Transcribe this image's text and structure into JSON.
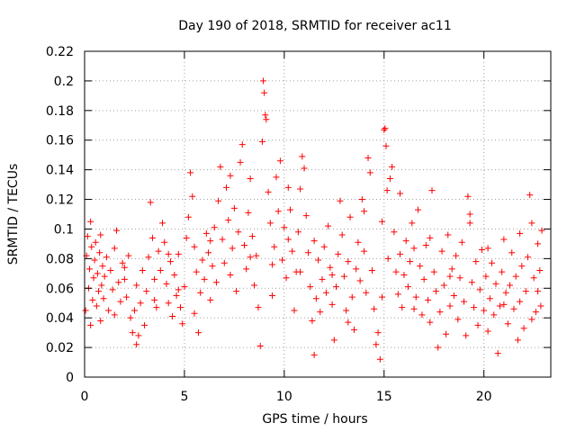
{
  "chart_data": {
    "type": "scatter",
    "title": "Day 190 of 2018, SRMTID for receiver ac11",
    "xlabel": "GPS time / hours",
    "ylabel": "SRMTID / TECUs",
    "xlim": [
      0,
      23.35
    ],
    "ylim": [
      0,
      0.22
    ],
    "xticks": [
      0,
      5,
      10,
      15,
      20
    ],
    "yticks": [
      0,
      0.02,
      0.04,
      0.06,
      0.08,
      0.1,
      0.12,
      0.14,
      0.16,
      0.18,
      0.2,
      0.22
    ],
    "xtick_labels": [
      "0",
      "5",
      "10",
      "15",
      "20"
    ],
    "ytick_labels": [
      "0",
      "0.02",
      "0.04",
      "0.06",
      "0.08",
      "0.1",
      "0.12",
      "0.14",
      "0.16",
      "0.18",
      "0.2",
      "0.22"
    ],
    "grid": true,
    "marker": "+",
    "color": "#ff0000",
    "series": [
      {
        "name": "SRMTID",
        "points": [
          [
            0.05,
            0.045
          ],
          [
            0.1,
            0.082
          ],
          [
            0.15,
            0.095
          ],
          [
            0.2,
            0.06
          ],
          [
            0.25,
            0.073
          ],
          [
            0.3,
            0.105
          ],
          [
            0.35,
            0.088
          ],
          [
            0.4,
            0.052
          ],
          [
            0.45,
            0.067
          ],
          [
            0.5,
            0.079
          ],
          [
            0.55,
            0.091
          ],
          [
            0.6,
            0.048
          ],
          [
            0.65,
            0.07
          ],
          [
            0.7,
            0.058
          ],
          [
            0.75,
            0.084
          ],
          [
            0.8,
            0.096
          ],
          [
            0.85,
            0.062
          ],
          [
            0.9,
            0.075
          ],
          [
            0.95,
            0.053
          ],
          [
            1.0,
            0.068
          ],
          [
            1.1,
            0.081
          ],
          [
            1.2,
            0.045
          ],
          [
            1.3,
            0.072
          ],
          [
            1.4,
            0.059
          ],
          [
            1.5,
            0.087
          ],
          [
            1.6,
            0.099
          ],
          [
            1.7,
            0.064
          ],
          [
            1.8,
            0.051
          ],
          [
            1.9,
            0.077
          ],
          [
            2.0,
            0.066
          ],
          [
            2.1,
            0.054
          ],
          [
            2.2,
            0.082
          ],
          [
            2.3,
            0.04
          ],
          [
            2.4,
            0.03
          ],
          [
            2.5,
            0.045
          ],
          [
            2.6,
            0.062
          ],
          [
            2.7,
            0.028
          ],
          [
            2.8,
            0.05
          ],
          [
            2.9,
            0.072
          ],
          [
            3.0,
            0.035
          ],
          [
            3.1,
            0.058
          ],
          [
            3.2,
            0.081
          ],
          [
            3.3,
            0.118
          ],
          [
            3.4,
            0.094
          ],
          [
            3.5,
            0.066
          ],
          [
            3.6,
            0.047
          ],
          [
            3.7,
            0.085
          ],
          [
            3.8,
            0.072
          ],
          [
            3.9,
            0.104
          ],
          [
            4.0,
            0.091
          ],
          [
            4.1,
            0.063
          ],
          [
            4.2,
            0.05
          ],
          [
            4.3,
            0.078
          ],
          [
            4.4,
            0.041
          ],
          [
            4.5,
            0.069
          ],
          [
            4.6,
            0.055
          ],
          [
            4.7,
            0.083
          ],
          [
            4.8,
            0.047
          ],
          [
            4.9,
            0.036
          ],
          [
            5.0,
            0.061
          ],
          [
            5.1,
            0.094
          ],
          [
            5.2,
            0.108
          ],
          [
            5.3,
            0.138
          ],
          [
            5.4,
            0.122
          ],
          [
            5.5,
            0.088
          ],
          [
            5.6,
            0.071
          ],
          [
            5.7,
            0.03
          ],
          [
            5.8,
            0.057
          ],
          [
            5.9,
            0.079
          ],
          [
            6.0,
            0.066
          ],
          [
            6.1,
            0.097
          ],
          [
            6.2,
            0.084
          ],
          [
            6.3,
            0.052
          ],
          [
            6.4,
            0.075
          ],
          [
            6.5,
            0.101
          ],
          [
            6.6,
            0.064
          ],
          [
            6.7,
            0.119
          ],
          [
            6.8,
            0.142
          ],
          [
            6.9,
            0.093
          ],
          [
            7.0,
            0.077
          ],
          [
            7.1,
            0.128
          ],
          [
            7.2,
            0.106
          ],
          [
            7.3,
            0.069
          ],
          [
            7.4,
            0.087
          ],
          [
            7.5,
            0.114
          ],
          [
            7.6,
            0.058
          ],
          [
            7.7,
            0.098
          ],
          [
            7.8,
            0.145
          ],
          [
            7.9,
            0.157
          ],
          [
            8.0,
            0.089
          ],
          [
            8.1,
            0.073
          ],
          [
            8.2,
            0.111
          ],
          [
            8.3,
            0.134
          ],
          [
            8.4,
            0.095
          ],
          [
            8.5,
            0.062
          ],
          [
            8.6,
            0.082
          ],
          [
            8.7,
            0.047
          ],
          [
            8.8,
            0.021
          ],
          [
            8.9,
            0.159
          ],
          [
            8.95,
            0.2
          ],
          [
            9.0,
            0.192
          ],
          [
            9.05,
            0.177
          ],
          [
            9.1,
            0.174
          ],
          [
            9.2,
            0.125
          ],
          [
            9.3,
            0.104
          ],
          [
            9.4,
            0.076
          ],
          [
            9.5,
            0.088
          ],
          [
            9.6,
            0.135
          ],
          [
            9.7,
            0.112
          ],
          [
            9.8,
            0.146
          ],
          [
            9.9,
            0.079
          ],
          [
            10.0,
            0.101
          ],
          [
            10.1,
            0.067
          ],
          [
            10.2,
            0.093
          ],
          [
            10.3,
            0.113
          ],
          [
            10.4,
            0.085
          ],
          [
            10.5,
            0.045
          ],
          [
            10.6,
            0.071
          ],
          [
            10.7,
            0.098
          ],
          [
            10.8,
            0.127
          ],
          [
            10.9,
            0.149
          ],
          [
            11.0,
            0.141
          ],
          [
            11.1,
            0.109
          ],
          [
            11.2,
            0.084
          ],
          [
            11.3,
            0.061
          ],
          [
            11.4,
            0.038
          ],
          [
            11.5,
            0.015
          ],
          [
            11.6,
            0.053
          ],
          [
            11.7,
            0.079
          ],
          [
            11.8,
            0.044
          ],
          [
            11.9,
            0.066
          ],
          [
            12.0,
            0.088
          ],
          [
            12.1,
            0.057
          ],
          [
            12.2,
            0.102
          ],
          [
            12.3,
            0.074
          ],
          [
            12.4,
            0.049
          ],
          [
            12.5,
            0.025
          ],
          [
            12.6,
            0.061
          ],
          [
            12.7,
            0.083
          ],
          [
            12.8,
            0.119
          ],
          [
            12.9,
            0.096
          ],
          [
            13.0,
            0.068
          ],
          [
            13.1,
            0.045
          ],
          [
            13.2,
            0.078
          ],
          [
            13.3,
            0.108
          ],
          [
            13.4,
            0.054
          ],
          [
            13.5,
            0.032
          ],
          [
            13.6,
            0.073
          ],
          [
            13.7,
            0.091
          ],
          [
            13.8,
            0.065
          ],
          [
            13.9,
            0.12
          ],
          [
            14.0,
            0.085
          ],
          [
            14.1,
            0.057
          ],
          [
            14.2,
            0.148
          ],
          [
            14.3,
            0.138
          ],
          [
            14.4,
            0.072
          ],
          [
            14.5,
            0.046
          ],
          [
            14.6,
            0.022
          ],
          [
            14.7,
            0.03
          ],
          [
            14.8,
            0.012
          ],
          [
            14.9,
            0.105
          ],
          [
            15.0,
            0.167
          ],
          [
            15.05,
            0.168
          ],
          [
            15.1,
            0.156
          ],
          [
            15.15,
            0.126
          ],
          [
            15.2,
            0.08
          ],
          [
            15.3,
            0.134
          ],
          [
            15.4,
            0.142
          ],
          [
            15.5,
            0.098
          ],
          [
            15.6,
            0.071
          ],
          [
            15.7,
            0.056
          ],
          [
            15.8,
            0.083
          ],
          [
            15.9,
            0.047
          ],
          [
            16.0,
            0.069
          ],
          [
            16.1,
            0.092
          ],
          [
            16.2,
            0.061
          ],
          [
            16.3,
            0.078
          ],
          [
            16.4,
            0.104
          ],
          [
            16.5,
            0.087
          ],
          [
            16.6,
            0.054
          ],
          [
            16.7,
            0.113
          ],
          [
            16.8,
            0.075
          ],
          [
            16.9,
            0.042
          ],
          [
            17.0,
            0.066
          ],
          [
            17.1,
            0.089
          ],
          [
            17.2,
            0.052
          ],
          [
            17.3,
            0.037
          ],
          [
            17.4,
            0.126
          ],
          [
            17.5,
            0.071
          ],
          [
            17.6,
            0.058
          ],
          [
            17.7,
            0.02
          ],
          [
            17.8,
            0.044
          ],
          [
            17.9,
            0.085
          ],
          [
            18.0,
            0.062
          ],
          [
            18.1,
            0.029
          ],
          [
            18.2,
            0.096
          ],
          [
            18.3,
            0.048
          ],
          [
            18.4,
            0.073
          ],
          [
            18.5,
            0.055
          ],
          [
            18.6,
            0.082
          ],
          [
            18.7,
            0.039
          ],
          [
            18.8,
            0.067
          ],
          [
            18.9,
            0.091
          ],
          [
            19.0,
            0.051
          ],
          [
            19.1,
            0.028
          ],
          [
            19.2,
            0.122
          ],
          [
            19.3,
            0.11
          ],
          [
            19.4,
            0.064
          ],
          [
            19.5,
            0.047
          ],
          [
            19.6,
            0.078
          ],
          [
            19.7,
            0.035
          ],
          [
            19.8,
            0.059
          ],
          [
            19.9,
            0.086
          ],
          [
            20.0,
            0.045
          ],
          [
            20.1,
            0.068
          ],
          [
            20.2,
            0.031
          ],
          [
            20.3,
            0.053
          ],
          [
            20.4,
            0.077
          ],
          [
            20.5,
            0.042
          ],
          [
            20.6,
            0.063
          ],
          [
            20.7,
            0.016
          ],
          [
            20.8,
            0.048
          ],
          [
            20.9,
            0.071
          ],
          [
            21.0,
            0.093
          ],
          [
            21.1,
            0.057
          ],
          [
            21.2,
            0.036
          ],
          [
            21.3,
            0.062
          ],
          [
            21.4,
            0.084
          ],
          [
            21.5,
            0.046
          ],
          [
            21.6,
            0.068
          ],
          [
            21.7,
            0.025
          ],
          [
            21.8,
            0.051
          ],
          [
            21.9,
            0.075
          ],
          [
            22.0,
            0.033
          ],
          [
            22.1,
            0.058
          ],
          [
            22.2,
            0.081
          ],
          [
            22.3,
            0.123
          ],
          [
            22.4,
            0.104
          ],
          [
            22.5,
            0.067
          ],
          [
            22.6,
            0.044
          ],
          [
            22.7,
            0.09
          ],
          [
            22.8,
            0.072
          ],
          [
            22.85,
            0.048
          ],
          [
            22.9,
            0.099
          ],
          [
            0.3,
            0.035
          ],
          [
            0.8,
            0.038
          ],
          [
            1.5,
            0.042
          ],
          [
            2.0,
            0.074
          ],
          [
            2.6,
            0.022
          ],
          [
            3.5,
            0.052
          ],
          [
            4.2,
            0.083
          ],
          [
            4.7,
            0.059
          ],
          [
            5.5,
            0.043
          ],
          [
            6.3,
            0.092
          ],
          [
            7.3,
            0.136
          ],
          [
            8.3,
            0.081
          ],
          [
            9.4,
            0.055
          ],
          [
            10.2,
            0.128
          ],
          [
            10.8,
            0.071
          ],
          [
            11.5,
            0.092
          ],
          [
            12.4,
            0.069
          ],
          [
            13.2,
            0.037
          ],
          [
            14.0,
            0.112
          ],
          [
            14.9,
            0.054
          ],
          [
            15.8,
            0.124
          ],
          [
            16.5,
            0.046
          ],
          [
            17.3,
            0.094
          ],
          [
            18.3,
            0.068
          ],
          [
            19.3,
            0.104
          ],
          [
            20.2,
            0.087
          ],
          [
            21.0,
            0.049
          ],
          [
            21.8,
            0.097
          ],
          [
            22.4,
            0.039
          ],
          [
            22.7,
            0.058
          ]
        ]
      }
    ]
  }
}
